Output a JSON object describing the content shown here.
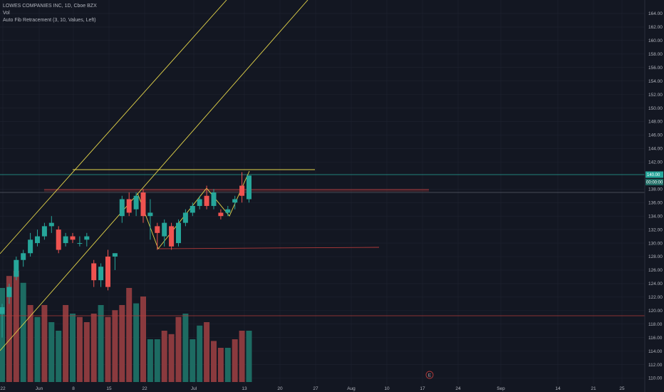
{
  "legend": {
    "symbol": "LOWES COMPANIES INC, 1D, Cboe BZX",
    "volume_label": "Vol",
    "indicator": "Auto Fib Retracement (3, 10, Values, Left)"
  },
  "colors": {
    "background": "#131722",
    "grid": "#1f2330",
    "up": "#26a69a",
    "down": "#ef5350",
    "vol_up": "#1d6b62",
    "vol_down": "#8a3a3e",
    "fib_yellow": "#e5d64a",
    "fib_red": "#b23a3a",
    "teal_line": "#26a69a"
  },
  "price_axis": {
    "labels": [
      "164.00",
      "162.00",
      "160.00",
      "158.00",
      "156.00",
      "154.00",
      "152.00",
      "150.00",
      "148.00",
      "146.00",
      "144.00",
      "142.00",
      "138.00",
      "136.00",
      "134.00",
      "132.00",
      "130.00",
      "128.00",
      "126.00",
      "124.00",
      "122.00",
      "120.00",
      "118.00",
      "116.00",
      "114.00",
      "112.00",
      "110.00"
    ],
    "last_price_tag": "140.00",
    "secondary_tag": "00:00:00"
  },
  "time_axis": {
    "labels": [
      "22",
      "Jun",
      "8",
      "15",
      "22",
      "Jul",
      "13",
      "20",
      "27",
      "Aug",
      "10",
      "17",
      "24",
      "Sep",
      "14",
      "21",
      "25"
    ]
  },
  "earnings_marker": "E",
  "chart_data": {
    "type": "candlestick",
    "title": "LOWES COMPANIES INC, 1D, Cboe BZX",
    "y_range": [
      109,
      166
    ],
    "candles": [
      {
        "o": 119.5,
        "h": 121.0,
        "l": 116.0,
        "c": 120.5
      },
      {
        "o": 122.0,
        "h": 124.0,
        "l": 121.0,
        "c": 123.5
      },
      {
        "o": 125.0,
        "h": 128.0,
        "l": 124.5,
        "c": 127.5
      },
      {
        "o": 127.5,
        "h": 129.0,
        "l": 126.5,
        "c": 128.5
      },
      {
        "o": 128.5,
        "h": 131.5,
        "l": 128.0,
        "c": 130.5
      },
      {
        "o": 130.0,
        "h": 132.0,
        "l": 129.5,
        "c": 131.0
      },
      {
        "o": 131.0,
        "h": 133.0,
        "l": 130.5,
        "c": 132.5
      },
      {
        "o": 132.5,
        "h": 134.0,
        "l": 131.5,
        "c": 133.0
      },
      {
        "o": 132.0,
        "h": 132.5,
        "l": 128.5,
        "c": 129.0
      },
      {
        "o": 130.0,
        "h": 131.5,
        "l": 129.5,
        "c": 131.0
      },
      {
        "o": 131.0,
        "h": 131.5,
        "l": 130.0,
        "c": 130.5
      },
      {
        "o": 130.0,
        "h": 131.0,
        "l": 129.5,
        "c": 130.0
      },
      {
        "o": 130.5,
        "h": 131.5,
        "l": 129.5,
        "c": 131.0
      },
      {
        "o": 127.0,
        "h": 127.5,
        "l": 123.5,
        "c": 124.5
      },
      {
        "o": 124.5,
        "h": 127.0,
        "l": 123.5,
        "c": 126.5
      },
      {
        "o": 128.0,
        "h": 129.0,
        "l": 123.0,
        "c": 123.5
      },
      {
        "o": 128.0,
        "h": 128.5,
        "l": 126.0,
        "c": 128.5
      },
      {
        "o": 134.0,
        "h": 137.0,
        "l": 133.0,
        "c": 136.5
      },
      {
        "o": 136.5,
        "h": 137.5,
        "l": 134.0,
        "c": 134.5
      },
      {
        "o": 135.0,
        "h": 137.5,
        "l": 134.0,
        "c": 137.0
      },
      {
        "o": 137.5,
        "h": 138.0,
        "l": 133.0,
        "c": 134.0
      },
      {
        "o": 134.0,
        "h": 136.5,
        "l": 130.5,
        "c": 134.5
      },
      {
        "o": 132.5,
        "h": 133.0,
        "l": 129.0,
        "c": 131.5
      },
      {
        "o": 131.0,
        "h": 133.5,
        "l": 129.5,
        "c": 133.0
      },
      {
        "o": 132.5,
        "h": 133.0,
        "l": 129.0,
        "c": 129.5
      },
      {
        "o": 130.0,
        "h": 133.5,
        "l": 129.5,
        "c": 133.0
      },
      {
        "o": 133.0,
        "h": 135.0,
        "l": 132.5,
        "c": 134.5
      },
      {
        "o": 134.5,
        "h": 136.0,
        "l": 134.0,
        "c": 135.5
      },
      {
        "o": 135.5,
        "h": 137.0,
        "l": 135.0,
        "c": 136.5
      },
      {
        "o": 137.0,
        "h": 138.5,
        "l": 135.0,
        "c": 135.5
      },
      {
        "o": 135.5,
        "h": 138.0,
        "l": 135.0,
        "c": 137.5
      },
      {
        "o": 134.5,
        "h": 135.0,
        "l": 133.5,
        "c": 134.0
      },
      {
        "o": 134.5,
        "h": 135.5,
        "l": 134.0,
        "c": 135.0
      },
      {
        "o": 136.0,
        "h": 137.0,
        "l": 135.0,
        "c": 136.5
      },
      {
        "o": 138.5,
        "h": 140.5,
        "l": 136.0,
        "c": 137.0
      },
      {
        "o": 136.5,
        "h": 140.0,
        "l": 136.0,
        "c": 140.0
      }
    ],
    "volumes": [
      0.55,
      0.62,
      0.65,
      0.58,
      0.45,
      0.38,
      0.45,
      0.35,
      0.3,
      0.45,
      0.4,
      0.38,
      0.35,
      0.4,
      0.45,
      0.38,
      0.42,
      0.45,
      0.55,
      0.46,
      0.5,
      0.25,
      0.25,
      0.3,
      0.28,
      0.38,
      0.4,
      0.25,
      0.33,
      0.35,
      0.24,
      0.2,
      0.2,
      0.25,
      0.3,
      0.3
    ],
    "volume_up": [
      true,
      false,
      false,
      true,
      false,
      true,
      false,
      true,
      true,
      false,
      true,
      false,
      false,
      false,
      true,
      false,
      false,
      false,
      false,
      true,
      false,
      true,
      true,
      false,
      false,
      false,
      true,
      true,
      true,
      false,
      false,
      false,
      true,
      false,
      false,
      true
    ]
  }
}
